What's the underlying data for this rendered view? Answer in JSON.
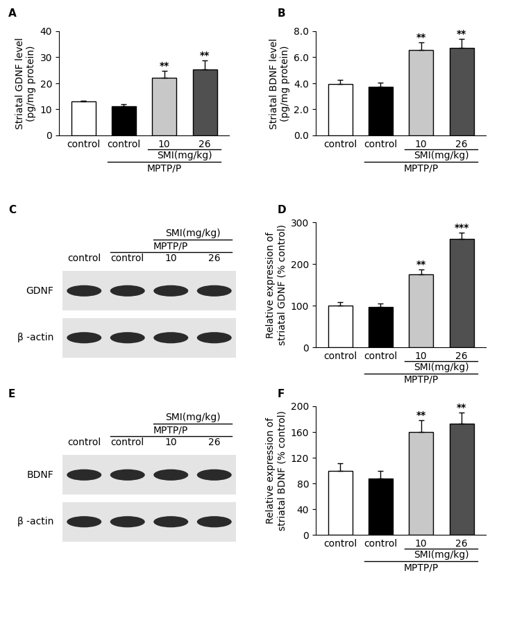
{
  "chart_data": [
    {
      "panel": "A",
      "type": "bar",
      "ylabel": "Striatal GDNF level\n(pg/mg protein)",
      "categories": [
        "control",
        "control",
        "10",
        "26"
      ],
      "values": [
        13.0,
        11.3,
        22.2,
        25.2
      ],
      "errors": [
        0.4,
        0.6,
        2.5,
        3.5
      ],
      "significance": [
        null,
        null,
        "**",
        "**"
      ],
      "colors": [
        "#ffffff",
        "#000000",
        "#c8c8c8",
        "#505050"
      ],
      "groups": [
        {
          "label": "SMI(mg/kg)",
          "span": [
            2,
            3
          ]
        },
        {
          "label": "MPTP/P",
          "span": [
            1,
            3
          ]
        }
      ],
      "ylim": [
        0,
        40
      ],
      "yticks": [
        0,
        10,
        20,
        30,
        40
      ],
      "grid": false
    },
    {
      "panel": "B",
      "type": "bar",
      "ylabel": "Striatal BDNF level\n(pg/mg protein)",
      "categories": [
        "control",
        "control",
        "10",
        "26"
      ],
      "values": [
        3.95,
        3.75,
        6.55,
        6.7
      ],
      "errors": [
        0.3,
        0.3,
        0.6,
        0.7
      ],
      "significance": [
        null,
        null,
        "**",
        "**"
      ],
      "colors": [
        "#ffffff",
        "#000000",
        "#c8c8c8",
        "#505050"
      ],
      "groups": [
        {
          "label": "SMI(mg/kg)",
          "span": [
            2,
            3
          ]
        },
        {
          "label": "MPTP/P",
          "span": [
            1,
            3
          ]
        }
      ],
      "ylim": [
        0,
        8
      ],
      "yticks": [
        {
          "value": 0,
          "label": "0.0"
        },
        {
          "value": 2,
          "label": "2.0"
        },
        {
          "value": 4,
          "label": "4.0"
        },
        {
          "value": 6,
          "label": "6.0"
        },
        {
          "value": 8,
          "label": "8.0"
        }
      ],
      "grid": false
    },
    {
      "panel": "D",
      "type": "bar",
      "ylabel": "Relative expression of\nstriatal GDNF (% control)",
      "categories": [
        "control",
        "control",
        "10",
        "26"
      ],
      "values": [
        100,
        97,
        175,
        260
      ],
      "errors": [
        8,
        8,
        11,
        15
      ],
      "significance": [
        null,
        null,
        "**",
        "***"
      ],
      "colors": [
        "#ffffff",
        "#000000",
        "#c8c8c8",
        "#505050"
      ],
      "groups": [
        {
          "label": "SMI(mg/kg)",
          "span": [
            2,
            3
          ]
        },
        {
          "label": "MPTP/P",
          "span": [
            1,
            3
          ]
        }
      ],
      "ylim": [
        0,
        300
      ],
      "yticks": [
        0,
        100,
        200,
        300
      ],
      "grid": false
    },
    {
      "panel": "F",
      "type": "bar",
      "ylabel": "Relative expression of\nstriatal BDNF (% control)",
      "categories": [
        "control",
        "control",
        "10",
        "26"
      ],
      "values": [
        100,
        88,
        160,
        173
      ],
      "errors": [
        11,
        11,
        18,
        17
      ],
      "significance": [
        null,
        null,
        "**",
        "**"
      ],
      "colors": [
        "#ffffff",
        "#000000",
        "#c8c8c8",
        "#505050"
      ],
      "groups": [
        {
          "label": "SMI(mg/kg)",
          "span": [
            2,
            3
          ]
        },
        {
          "label": "MPTP/P",
          "span": [
            1,
            3
          ]
        }
      ],
      "ylim": [
        0,
        200
      ],
      "yticks": [
        0,
        40,
        80,
        120,
        160,
        200
      ],
      "grid": false
    }
  ],
  "blots": [
    {
      "panel": "C",
      "lanes": [
        "control",
        "control",
        "10",
        "26"
      ],
      "groups": [
        {
          "label": "MPTP/P",
          "span": [
            1,
            3
          ]
        },
        {
          "label": "SMI(mg/kg)",
          "span": [
            2,
            3
          ]
        }
      ],
      "rows": [
        "GDNF",
        "β -actin"
      ]
    },
    {
      "panel": "E",
      "lanes": [
        "control",
        "control",
        "10",
        "26"
      ],
      "groups": [
        {
          "label": "MPTP/P",
          "span": [
            1,
            3
          ]
        },
        {
          "label": "SMI(mg/kg)",
          "span": [
            2,
            3
          ]
        }
      ],
      "rows": [
        "BDNF",
        "β -actin"
      ]
    }
  ]
}
